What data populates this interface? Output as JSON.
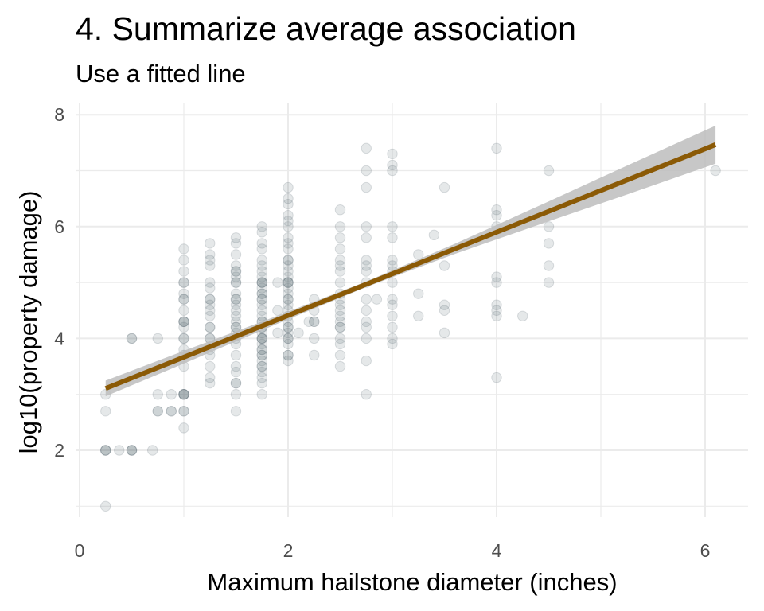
{
  "chart_data": {
    "type": "scatter",
    "title": "4. Summarize average association",
    "subtitle": "Use a fitted line",
    "xlabel": "Maximum hailstone diameter (inches)",
    "ylabel": "log10(property damage)",
    "xlim": [
      0,
      6.4
    ],
    "ylim": [
      0.6,
      8.1
    ],
    "xticks": [
      0,
      2,
      4,
      6
    ],
    "yticks": [
      2,
      4,
      6,
      8
    ],
    "grid": true,
    "legend": "none",
    "colors": {
      "points": "#4a5b66",
      "line": "#8b5a06",
      "band": "#bdbdbd"
    },
    "series": [
      {
        "type": "points",
        "points": [
          [
            0.25,
            1.0
          ],
          [
            0.25,
            2.0
          ],
          [
            0.25,
            2.0
          ],
          [
            0.25,
            2.0
          ],
          [
            0.25,
            2.7
          ],
          [
            0.25,
            3.0
          ],
          [
            0.38,
            2.0
          ],
          [
            0.5,
            2.0
          ],
          [
            0.5,
            2.0
          ],
          [
            0.5,
            2.0
          ],
          [
            0.5,
            4.0
          ],
          [
            0.5,
            4.0
          ],
          [
            0.7,
            2.0
          ],
          [
            0.75,
            2.7
          ],
          [
            0.75,
            2.7
          ],
          [
            0.75,
            3.0
          ],
          [
            0.75,
            4.0
          ],
          [
            0.88,
            2.7
          ],
          [
            0.88,
            2.7
          ],
          [
            0.88,
            3.0
          ],
          [
            1.0,
            2.4
          ],
          [
            1.0,
            2.7
          ],
          [
            1.0,
            2.7
          ],
          [
            1.0,
            3.0
          ],
          [
            1.0,
            3.0
          ],
          [
            1.0,
            3.0
          ],
          [
            1.0,
            3.0
          ],
          [
            1.0,
            3.5
          ],
          [
            1.0,
            3.7
          ],
          [
            1.0,
            3.8
          ],
          [
            1.0,
            4.0
          ],
          [
            1.0,
            4.0
          ],
          [
            1.0,
            4.2
          ],
          [
            1.0,
            4.3
          ],
          [
            1.0,
            4.3
          ],
          [
            1.0,
            4.3
          ],
          [
            1.0,
            4.5
          ],
          [
            1.0,
            4.7
          ],
          [
            1.0,
            4.7
          ],
          [
            1.0,
            4.8
          ],
          [
            1.0,
            5.0
          ],
          [
            1.0,
            5.0
          ],
          [
            1.0,
            5.2
          ],
          [
            1.0,
            5.4
          ],
          [
            1.0,
            5.6
          ],
          [
            1.25,
            3.2
          ],
          [
            1.25,
            3.3
          ],
          [
            1.25,
            3.5
          ],
          [
            1.25,
            3.7
          ],
          [
            1.25,
            3.8
          ],
          [
            1.25,
            4.0
          ],
          [
            1.25,
            4.0
          ],
          [
            1.25,
            4.2
          ],
          [
            1.25,
            4.2
          ],
          [
            1.25,
            4.4
          ],
          [
            1.25,
            4.5
          ],
          [
            1.25,
            4.6
          ],
          [
            1.25,
            4.7
          ],
          [
            1.25,
            4.7
          ],
          [
            1.25,
            4.9
          ],
          [
            1.25,
            5.0
          ],
          [
            1.25,
            5.3
          ],
          [
            1.25,
            5.4
          ],
          [
            1.25,
            5.5
          ],
          [
            1.25,
            5.7
          ],
          [
            1.5,
            2.7
          ],
          [
            1.5,
            3.0
          ],
          [
            1.5,
            3.2
          ],
          [
            1.5,
            3.2
          ],
          [
            1.5,
            3.4
          ],
          [
            1.5,
            3.5
          ],
          [
            1.5,
            3.7
          ],
          [
            1.5,
            3.9
          ],
          [
            1.5,
            4.0
          ],
          [
            1.5,
            4.1
          ],
          [
            1.5,
            4.2
          ],
          [
            1.5,
            4.2
          ],
          [
            1.5,
            4.3
          ],
          [
            1.5,
            4.4
          ],
          [
            1.5,
            4.5
          ],
          [
            1.5,
            4.6
          ],
          [
            1.5,
            4.7
          ],
          [
            1.5,
            4.7
          ],
          [
            1.5,
            4.8
          ],
          [
            1.5,
            5.0
          ],
          [
            1.5,
            5.0
          ],
          [
            1.5,
            5.1
          ],
          [
            1.5,
            5.2
          ],
          [
            1.5,
            5.2
          ],
          [
            1.5,
            5.3
          ],
          [
            1.5,
            5.5
          ],
          [
            1.5,
            5.7
          ],
          [
            1.5,
            5.8
          ],
          [
            1.75,
            3.0
          ],
          [
            1.75,
            3.2
          ],
          [
            1.75,
            3.3
          ],
          [
            1.75,
            3.4
          ],
          [
            1.75,
            3.5
          ],
          [
            1.75,
            3.5
          ],
          [
            1.75,
            3.7
          ],
          [
            1.75,
            3.7
          ],
          [
            1.75,
            3.8
          ],
          [
            1.75,
            3.8
          ],
          [
            1.75,
            3.9
          ],
          [
            1.75,
            4.0
          ],
          [
            1.75,
            4.0
          ],
          [
            1.75,
            4.0
          ],
          [
            1.75,
            4.1
          ],
          [
            1.75,
            4.2
          ],
          [
            1.75,
            4.2
          ],
          [
            1.75,
            4.3
          ],
          [
            1.75,
            4.4
          ],
          [
            1.75,
            4.5
          ],
          [
            1.75,
            4.6
          ],
          [
            1.75,
            4.7
          ],
          [
            1.75,
            4.7
          ],
          [
            1.75,
            4.8
          ],
          [
            1.75,
            4.8
          ],
          [
            1.75,
            4.9
          ],
          [
            1.75,
            5.0
          ],
          [
            1.75,
            5.0
          ],
          [
            1.75,
            5.0
          ],
          [
            1.75,
            5.1
          ],
          [
            1.75,
            5.2
          ],
          [
            1.75,
            5.3
          ],
          [
            1.75,
            5.4
          ],
          [
            1.75,
            5.6
          ],
          [
            1.75,
            5.7
          ],
          [
            1.75,
            5.9
          ],
          [
            1.75,
            6.0
          ],
          [
            1.75,
            3.6
          ],
          [
            1.75,
            4.3
          ],
          [
            1.9,
            4.1
          ],
          [
            1.9,
            4.5
          ],
          [
            1.9,
            5.0
          ],
          [
            2.0,
            3.6
          ],
          [
            2.0,
            3.7
          ],
          [
            2.0,
            3.7
          ],
          [
            2.0,
            3.9
          ],
          [
            2.0,
            4.0
          ],
          [
            2.0,
            4.0
          ],
          [
            2.0,
            4.1
          ],
          [
            2.0,
            4.2
          ],
          [
            2.0,
            4.2
          ],
          [
            2.0,
            4.3
          ],
          [
            2.0,
            4.4
          ],
          [
            2.0,
            4.5
          ],
          [
            2.0,
            4.6
          ],
          [
            2.0,
            4.7
          ],
          [
            2.0,
            4.7
          ],
          [
            2.0,
            4.8
          ],
          [
            2.0,
            4.9
          ],
          [
            2.0,
            5.0
          ],
          [
            2.0,
            5.0
          ],
          [
            2.0,
            5.0
          ],
          [
            2.0,
            5.1
          ],
          [
            2.0,
            5.2
          ],
          [
            2.0,
            5.3
          ],
          [
            2.0,
            5.4
          ],
          [
            2.0,
            5.4
          ],
          [
            2.0,
            5.6
          ],
          [
            2.0,
            5.7
          ],
          [
            2.0,
            5.8
          ],
          [
            2.0,
            6.0
          ],
          [
            2.0,
            6.1
          ],
          [
            2.0,
            6.2
          ],
          [
            2.0,
            6.4
          ],
          [
            2.0,
            6.5
          ],
          [
            2.0,
            6.7
          ],
          [
            2.1,
            4.1
          ],
          [
            2.2,
            4.3
          ],
          [
            2.25,
            3.7
          ],
          [
            2.25,
            4.0
          ],
          [
            2.25,
            4.3
          ],
          [
            2.25,
            4.3
          ],
          [
            2.25,
            4.5
          ],
          [
            2.25,
            4.7
          ],
          [
            2.5,
            3.5
          ],
          [
            2.5,
            3.7
          ],
          [
            2.5,
            3.9
          ],
          [
            2.5,
            4.0
          ],
          [
            2.5,
            4.2
          ],
          [
            2.5,
            4.2
          ],
          [
            2.5,
            4.3
          ],
          [
            2.5,
            4.4
          ],
          [
            2.5,
            4.5
          ],
          [
            2.5,
            4.6
          ],
          [
            2.5,
            4.7
          ],
          [
            2.5,
            4.8
          ],
          [
            2.5,
            5.0
          ],
          [
            2.5,
            5.2
          ],
          [
            2.5,
            5.3
          ],
          [
            2.5,
            5.4
          ],
          [
            2.5,
            5.6
          ],
          [
            2.5,
            5.8
          ],
          [
            2.5,
            6.0
          ],
          [
            2.5,
            6.3
          ],
          [
            2.75,
            3.0
          ],
          [
            2.75,
            3.6
          ],
          [
            2.75,
            4.0
          ],
          [
            2.75,
            4.2
          ],
          [
            2.75,
            4.3
          ],
          [
            2.75,
            4.5
          ],
          [
            2.75,
            4.7
          ],
          [
            2.75,
            5.0
          ],
          [
            2.75,
            5.2
          ],
          [
            2.75,
            5.3
          ],
          [
            2.75,
            5.4
          ],
          [
            2.75,
            5.8
          ],
          [
            2.75,
            6.0
          ],
          [
            2.75,
            6.7
          ],
          [
            2.75,
            7.0
          ],
          [
            2.75,
            7.4
          ],
          [
            2.85,
            4.7
          ],
          [
            3.0,
            3.9
          ],
          [
            3.0,
            4.0
          ],
          [
            3.0,
            4.2
          ],
          [
            3.0,
            4.4
          ],
          [
            3.0,
            4.6
          ],
          [
            3.0,
            4.7
          ],
          [
            3.0,
            5.0
          ],
          [
            3.0,
            5.2
          ],
          [
            3.0,
            5.3
          ],
          [
            3.0,
            5.4
          ],
          [
            3.0,
            5.8
          ],
          [
            3.0,
            6.0
          ],
          [
            3.0,
            7.0
          ],
          [
            3.0,
            7.1
          ],
          [
            3.0,
            7.3
          ],
          [
            3.25,
            4.4
          ],
          [
            3.25,
            4.8
          ],
          [
            3.25,
            5.5
          ],
          [
            3.4,
            5.85
          ],
          [
            3.5,
            4.1
          ],
          [
            3.5,
            4.5
          ],
          [
            3.5,
            4.6
          ],
          [
            3.5,
            5.3
          ],
          [
            3.5,
            6.7
          ],
          [
            4.0,
            3.3
          ],
          [
            4.0,
            4.4
          ],
          [
            4.0,
            4.5
          ],
          [
            4.0,
            4.6
          ],
          [
            4.0,
            5.0
          ],
          [
            4.0,
            5.1
          ],
          [
            4.0,
            6.0
          ],
          [
            4.0,
            6.2
          ],
          [
            4.0,
            6.3
          ],
          [
            4.0,
            7.4
          ],
          [
            4.25,
            4.4
          ],
          [
            4.5,
            5.0
          ],
          [
            4.5,
            5.3
          ],
          [
            4.5,
            5.7
          ],
          [
            4.5,
            6.0
          ],
          [
            4.5,
            7.0
          ],
          [
            6.1,
            7.0
          ]
        ]
      },
      {
        "type": "fitted-line",
        "intercept": 2.92,
        "slope": 0.745,
        "x_range": [
          0.25,
          6.1
        ],
        "band_halfwidth": [
          0.14,
          0.11,
          0.07,
          0.05,
          0.09,
          0.17,
          0.26,
          0.34
        ]
      }
    ]
  }
}
